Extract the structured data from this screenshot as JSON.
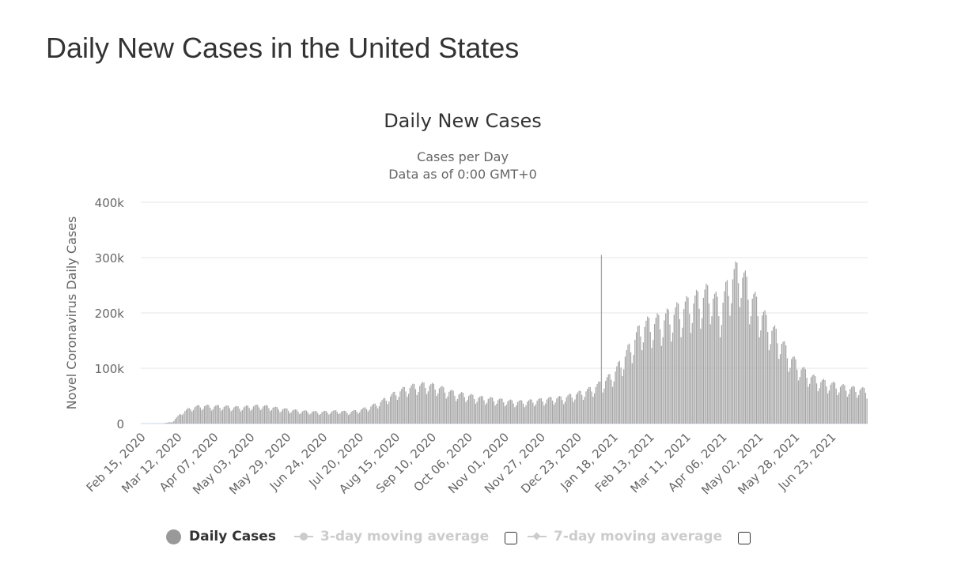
{
  "page": {
    "title": "Daily New Cases in the United States"
  },
  "colors": {
    "bar": "#a6a6a6",
    "bar_stroke": "#8f8f8f",
    "text": "#333333",
    "axis_text": "#666666",
    "grid": "#e6e6e6",
    "legend_inactive": "#cccccc",
    "legend_active_marker": "#999999"
  },
  "legend": {
    "items": [
      {
        "label": "Daily Cases",
        "active": true,
        "marker": "circle-icon"
      },
      {
        "label": "3-day moving average",
        "active": false,
        "marker": "line-circle-icon"
      },
      {
        "label": "7-day moving average",
        "active": false,
        "marker": "line-diamond-icon"
      }
    ]
  },
  "chart_data": {
    "type": "bar",
    "title": "Daily New Cases",
    "subtitle_lines": [
      "Cases per Day",
      "Data as of 0:00 GMT+0"
    ],
    "xlabel": "",
    "ylabel": "Novel Coronavirus Daily Cases",
    "ylim": [
      0,
      400000
    ],
    "yticks": [
      {
        "value": 0,
        "label": "0"
      },
      {
        "value": 100000,
        "label": "100k"
      },
      {
        "value": 200000,
        "label": "200k"
      },
      {
        "value": 300000,
        "label": "300k"
      },
      {
        "value": 400000,
        "label": "400k"
      }
    ],
    "x_start": "2020-02-15",
    "x_end": "2021-07-17",
    "x_tick_labels": [
      "Feb 15, 2020",
      "Mar 12, 2020",
      "Apr 07, 2020",
      "May 03, 2020",
      "May 29, 2020",
      "Jun 24, 2020",
      "Jul 20, 2020",
      "Aug 15, 2020",
      "Sep 10, 2020",
      "Oct 06, 2020",
      "Nov 01, 2020",
      "Nov 27, 2020",
      "Dec 23, 2020",
      "Jan 18, 2021",
      "Feb 13, 2021",
      "Mar 11, 2021",
      "Apr 06, 2021",
      "May 02, 2021",
      "May 28, 2021",
      "Jun 23, 2021"
    ],
    "grid": true,
    "legend_position": "bottom",
    "series": [
      {
        "name": "Daily Cases",
        "sampling": "weekly typical daily values (Feb 15, 2020 - Jul 17, 2021)",
        "values": [
          0,
          10,
          200,
          3000,
          20000,
          28000,
          31000,
          30000,
          30000,
          29000,
          28000,
          30000,
          31000,
          29000,
          26000,
          24000,
          22000,
          21000,
          20000,
          21000,
          22000,
          20000,
          23000,
          28000,
          35000,
          45000,
          55000,
          62000,
          66000,
          68000,
          64000,
          58000,
          52000,
          50000,
          46000,
          44000,
          42000,
          40000,
          38000,
          38000,
          40000,
          42000,
          44000,
          45000,
          50000,
          55000,
          62000,
          72000,
          85000,
          110000,
          140000,
          170000,
          175000,
          180000,
          190000,
          200000,
          210000,
          220000,
          230000,
          200000,
          250000,
          270000,
          230000,
          200000,
          170000,
          150000,
          120000,
          100000,
          85000,
          75000,
          70000,
          66000,
          62000,
          60000,
          58000,
          58000,
          60000,
          62000,
          66000,
          70000,
          72000,
          68000,
          62000,
          55000,
          48000,
          40000,
          32000,
          25000,
          22000,
          18000,
          15000,
          13000,
          12000,
          11000,
          12000,
          14000,
          18000,
          24000
        ],
        "peak": {
          "date": "2021-01-08",
          "value": 305000
        }
      }
    ]
  }
}
